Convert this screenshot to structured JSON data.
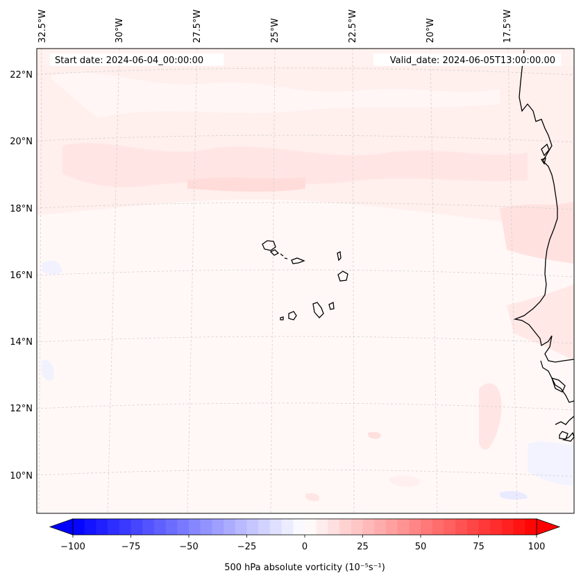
{
  "map": {
    "start_date": "Start date: 2024-06-04_00:00:00",
    "valid_date": "Valid_date: 2024-06-05T13:00:00.00",
    "lon_labels": [
      "32.5°W",
      "30°W",
      "27.5°W",
      "25°W",
      "22.5°W",
      "20°W",
      "17.5°W"
    ],
    "lat_labels": [
      "22°N",
      "20°N",
      "18°N",
      "16°N",
      "14°N",
      "12°N",
      "10°N"
    ],
    "coastline_color": "#000000",
    "gridline_color": "#bdbdbd"
  },
  "colorbar": {
    "label": "500 hPa absolute vorticity (10⁻⁵s⁻¹)",
    "ticks": [
      "−100",
      "−75",
      "−50",
      "−25",
      "0",
      "25",
      "50",
      "75",
      "100"
    ],
    "min": -100,
    "max": 100,
    "step": 5,
    "colors": {
      "negative": "#0000ff",
      "neutral": "#ffffff",
      "positive": "#ff0000"
    }
  }
}
